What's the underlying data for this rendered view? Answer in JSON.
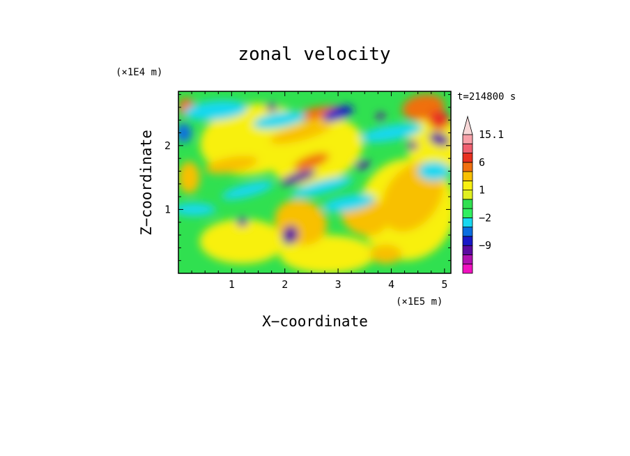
{
  "chart_data": {
    "type": "heatmap",
    "title": "zonal velocity",
    "xlabel": "X−coordinate",
    "ylabel": "Z−coordinate",
    "x_unit": "(×1E5 m)",
    "y_unit": "(×1E4 m)",
    "time_label": "t=214800 s",
    "xlim": [
      0,
      5.12
    ],
    "ylim": [
      0,
      2.85
    ],
    "x_ticks": [
      {
        "value": 1,
        "label": "1"
      },
      {
        "value": 2,
        "label": "2"
      },
      {
        "value": 3,
        "label": "3"
      },
      {
        "value": 4,
        "label": "4"
      },
      {
        "value": 5,
        "label": "5"
      }
    ],
    "y_ticks": [
      {
        "value": 1,
        "label": "1"
      },
      {
        "value": 2,
        "label": "2"
      }
    ],
    "colorbar": {
      "levels": [
        -15,
        -12,
        -9,
        -6,
        -4,
        -2,
        -1,
        0,
        1,
        2,
        4,
        6,
        9,
        12,
        15.1
      ],
      "colors": [
        "#f012c0",
        "#b010b0",
        "#5a0aa0",
        "#1818c8",
        "#0a6ee0",
        "#18d8f0",
        "#30f060",
        "#30e050",
        "#e0f020",
        "#f8f010",
        "#f8c000",
        "#f07010",
        "#e83020",
        "#f06070",
        "#f8a0a8"
      ],
      "overflow_color": "#f8d8d8",
      "labels": [
        {
          "value": 15.1,
          "text": "15.1"
        },
        {
          "value": 6,
          "text": "6"
        },
        {
          "value": 1,
          "text": "1"
        },
        {
          "value": -2,
          "text": "−2"
        },
        {
          "value": -9,
          "text": "−9"
        }
      ]
    }
  }
}
